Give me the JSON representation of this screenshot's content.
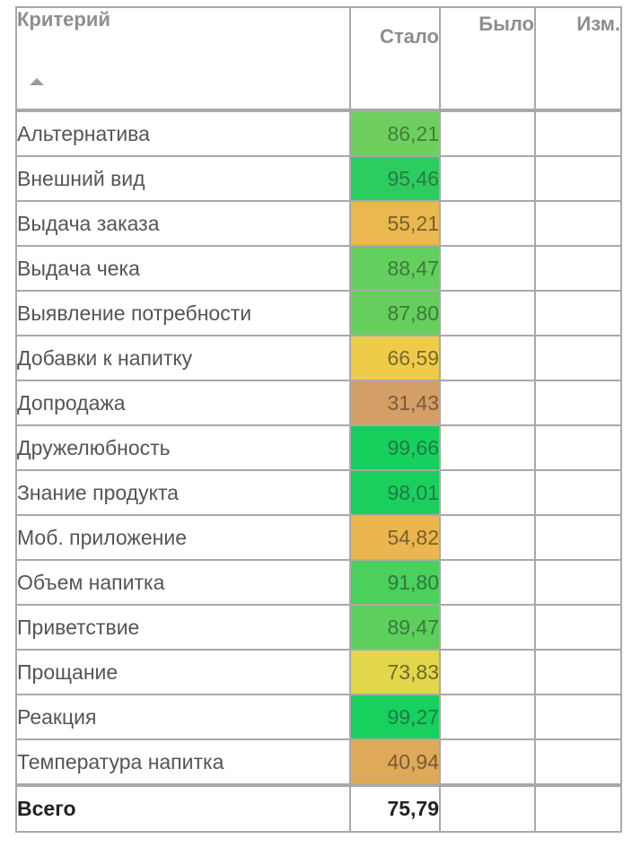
{
  "table": {
    "headers": {
      "criterion": "Критерий",
      "became": "Стало",
      "was": "Было",
      "change": "Изм."
    },
    "sort_icon": "sort-ascending-triangle",
    "rows": [
      {
        "name": "Альтернатива",
        "became": "86,21",
        "was": "",
        "change": "",
        "color": "#6fcf5e",
        "text_color": "#3f7f3a"
      },
      {
        "name": "Внешний вид",
        "became": "95,46",
        "was": "",
        "change": "",
        "color": "#2ccd5e",
        "text_color": "#2b7a44"
      },
      {
        "name": "Выдача заказа",
        "became": "55,21",
        "was": "",
        "change": "",
        "color": "#ebb84f",
        "text_color": "#7a5f2c"
      },
      {
        "name": "Выдача чека",
        "became": "88,47",
        "was": "",
        "change": "",
        "color": "#63cf5e",
        "text_color": "#3b7a3a"
      },
      {
        "name": "Выявление потребности",
        "became": "87,80",
        "was": "",
        "change": "",
        "color": "#66ce5c",
        "text_color": "#3b7a3a"
      },
      {
        "name": "Добавки к напитку",
        "became": "66,59",
        "was": "",
        "change": "",
        "color": "#eecb48",
        "text_color": "#7a6a2c"
      },
      {
        "name": "Допродажа",
        "became": "31,43",
        "was": "",
        "change": "",
        "color": "#d39f66",
        "text_color": "#7a5a3a"
      },
      {
        "name": "Дружелюбность",
        "became": "99,66",
        "was": "",
        "change": "",
        "color": "#16d05e",
        "text_color": "#207a44"
      },
      {
        "name": "Знание продукта",
        "became": "98,01",
        "was": "",
        "change": "",
        "color": "#1bcf5e",
        "text_color": "#207a44"
      },
      {
        "name": "Моб. приложение",
        "became": "54,82",
        "was": "",
        "change": "",
        "color": "#ebb64e",
        "text_color": "#7a5f2c"
      },
      {
        "name": "Объем напитка",
        "became": "91,80",
        "was": "",
        "change": "",
        "color": "#4bcf5d",
        "text_color": "#307a3c"
      },
      {
        "name": "Приветствие",
        "became": "89,47",
        "was": "",
        "change": "",
        "color": "#5ccf5d",
        "text_color": "#3a7a3a"
      },
      {
        "name": "Прощание",
        "became": "73,83",
        "was": "",
        "change": "",
        "color": "#e2d64a",
        "text_color": "#6e6a2c"
      },
      {
        "name": "Реакция",
        "became": "99,27",
        "was": "",
        "change": "",
        "color": "#18d05e",
        "text_color": "#207a44"
      },
      {
        "name": "Температура напитка",
        "became": "40,94",
        "was": "",
        "change": "",
        "color": "#dfa95a",
        "text_color": "#7a5a32"
      }
    ],
    "total": {
      "name": "Всего",
      "became": "75,79",
      "was": "",
      "change": ""
    }
  }
}
